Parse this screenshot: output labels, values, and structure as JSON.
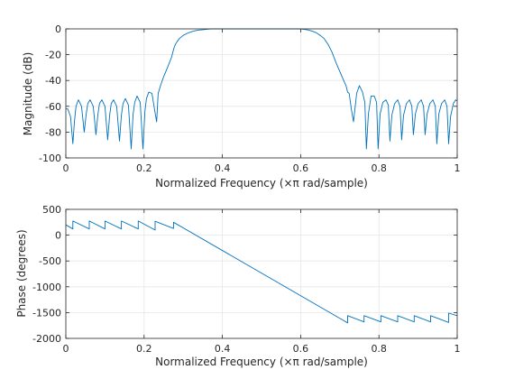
{
  "chart_data": [
    {
      "type": "line",
      "xlabel_main": "Normalized Frequency ",
      "xlabel_unit": "(×π rad/sample)",
      "ylabel": "Magnitude (dB)",
      "xlim": [
        0,
        1
      ],
      "ylim": [
        -100,
        0
      ],
      "x_ticks": [
        0,
        0.2,
        0.4,
        0.6,
        0.8,
        1
      ],
      "x_tick_labels": [
        "0",
        "0.2",
        "0.4",
        "0.6",
        "0.8",
        "1"
      ],
      "y_ticks": [
        -100,
        -80,
        -60,
        -40,
        -20,
        0
      ],
      "y_tick_labels": [
        "-100",
        "-80",
        "-60",
        "-40",
        "-20",
        "0"
      ],
      "grid": true,
      "line_color": "#0072bd",
      "series": [
        {
          "x": [
            0.0,
            0.005,
            0.012,
            0.018,
            0.022,
            0.026,
            0.032,
            0.04,
            0.047,
            0.052,
            0.056,
            0.062,
            0.07,
            0.077,
            0.082,
            0.086,
            0.092,
            0.1,
            0.107,
            0.112,
            0.116,
            0.122,
            0.13,
            0.137,
            0.142,
            0.146,
            0.152,
            0.16,
            0.167,
            0.172,
            0.176,
            0.182,
            0.19,
            0.197,
            0.202,
            0.206,
            0.212,
            0.22,
            0.227,
            0.232,
            0.236,
            0.242,
            0.25,
            0.257,
            0.265,
            0.27,
            0.276,
            0.28,
            0.284,
            0.29,
            0.3,
            0.31,
            0.32,
            0.33,
            0.34,
            0.35,
            0.36,
            0.37,
            0.38,
            0.39,
            0.4,
            0.41,
            0.42,
            0.5,
            0.58,
            0.59,
            0.6,
            0.61,
            0.62,
            0.63,
            0.64,
            0.65,
            0.66,
            0.67,
            0.68,
            0.69,
            0.7,
            0.71,
            0.716,
            0.72,
            0.724,
            0.73,
            0.735,
            0.743,
            0.75,
            0.758,
            0.764,
            0.768,
            0.773,
            0.78,
            0.788,
            0.794,
            0.798,
            0.803,
            0.81,
            0.818,
            0.824,
            0.828,
            0.833,
            0.84,
            0.848,
            0.854,
            0.858,
            0.863,
            0.87,
            0.878,
            0.884,
            0.888,
            0.893,
            0.9,
            0.908,
            0.914,
            0.918,
            0.923,
            0.93,
            0.938,
            0.944,
            0.948,
            0.953,
            0.96,
            0.968,
            0.974,
            0.978,
            0.983,
            0.99,
            0.996,
            1.0
          ],
          "y": [
            -62,
            -62,
            -68,
            -89,
            -72,
            -60,
            -55,
            -60,
            -80,
            -66,
            -58,
            -55,
            -60,
            -82,
            -66,
            -58,
            -55,
            -60,
            -86,
            -67,
            -58,
            -55,
            -60,
            -87,
            -67,
            -58,
            -54,
            -59,
            -93,
            -66,
            -57,
            -52,
            -57,
            -93,
            -64,
            -54,
            -49,
            -50,
            -63,
            -72,
            -50,
            -44,
            -37,
            -32,
            -26,
            -22,
            -15,
            -12,
            -10,
            -7.5,
            -5,
            -3.5,
            -2.3,
            -1.5,
            -0.9,
            -0.6,
            -0.3,
            -0.1,
            0,
            0,
            0,
            0,
            0,
            0,
            0,
            0,
            -0.1,
            -0.4,
            -0.9,
            -1.8,
            -3,
            -5,
            -7.5,
            -12,
            -18,
            -26,
            -33,
            -40,
            -44,
            -49,
            -50,
            -63,
            -72,
            -50,
            -44,
            -49,
            -57,
            -93,
            -66,
            -52,
            -52,
            -57,
            -93,
            -66,
            -57,
            -55,
            -59,
            -87,
            -67,
            -58,
            -55,
            -60,
            -86,
            -67,
            -58,
            -55,
            -60,
            -82,
            -66,
            -58,
            -55,
            -60,
            -82,
            -66,
            -58,
            -55,
            -60,
            -89,
            -66,
            -58,
            -55,
            -60,
            -89,
            -68,
            -58,
            -55,
            -56
          ]
        }
      ]
    },
    {
      "type": "line",
      "xlabel_main": "Normalized Frequency ",
      "xlabel_unit": "(×π rad/sample)",
      "ylabel": "Phase (degrees)",
      "xlim": [
        0,
        1
      ],
      "ylim": [
        -2000,
        500
      ],
      "x_ticks": [
        0,
        0.2,
        0.4,
        0.6,
        0.8,
        1
      ],
      "x_tick_labels": [
        "0",
        "0.2",
        "0.4",
        "0.6",
        "0.8",
        "1"
      ],
      "y_ticks": [
        -2000,
        -1500,
        -1000,
        -500,
        0,
        500
      ],
      "y_tick_labels": [
        "-2000",
        "-1500",
        "-1000",
        "-500",
        "0",
        "500"
      ],
      "grid": true,
      "line_color": "#0072bd",
      "series": [
        {
          "x": [
            0.0,
            0.018,
            0.018,
            0.06,
            0.06,
            0.1,
            0.1,
            0.142,
            0.142,
            0.185,
            0.185,
            0.228,
            0.228,
            0.275,
            0.275,
            0.72,
            0.72,
            0.762,
            0.762,
            0.805,
            0.805,
            0.848,
            0.848,
            0.89,
            0.89,
            0.932,
            0.932,
            0.978,
            0.978,
            1.0
          ],
          "y": [
            200,
            120,
            275,
            120,
            275,
            120,
            275,
            120,
            275,
            120,
            275,
            100,
            270,
            130,
            250,
            -1700,
            -1560,
            -1680,
            -1560,
            -1680,
            -1560,
            -1680,
            -1560,
            -1680,
            -1560,
            -1680,
            -1560,
            -1690,
            -1510,
            -1560
          ]
        }
      ]
    }
  ]
}
